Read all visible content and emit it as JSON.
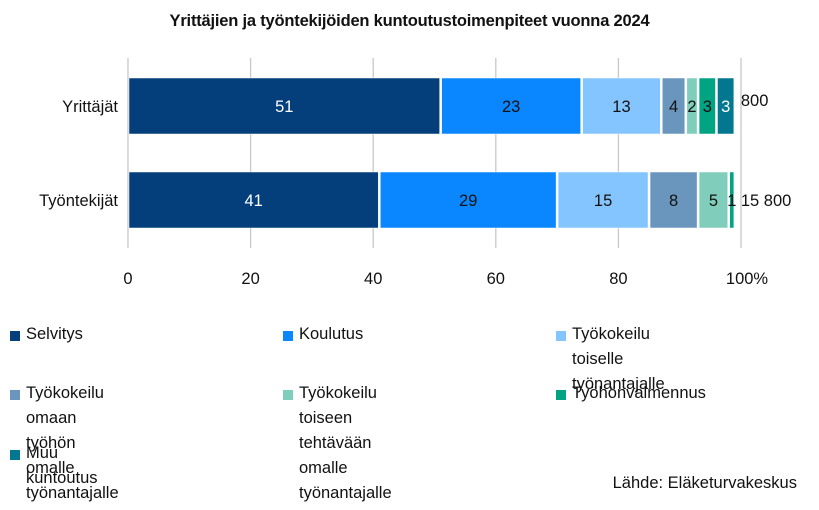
{
  "chart_data": {
    "type": "bar",
    "orientation": "horizontal",
    "stacked": true,
    "title": "Yrittäjien ja työntekijöiden kuntoutustoimenpiteet vuonna 2024",
    "xlabel": "",
    "ylabel": "",
    "xlim": [
      0,
      100
    ],
    "x_ticks": [
      "0",
      "20",
      "40",
      "60",
      "80",
      "100"
    ],
    "x_unit_label": "%",
    "grid": "vertical",
    "legend_position": "bottom",
    "categories": [
      "Yrittäjät",
      "Työntekijät"
    ],
    "totals": [
      "800",
      "15 800"
    ],
    "series": [
      {
        "name": "Selvitys",
        "color": "#043E7B",
        "label_color": "#ffffff",
        "values": [
          51,
          41
        ]
      },
      {
        "name": "Koulutus",
        "color": "#0A87FF",
        "label_color": "#111111",
        "values": [
          23,
          29
        ]
      },
      {
        "name": "Työkokeilu\ntoiselle työnantajalle",
        "color": "#85C5FF",
        "label_color": "#111111",
        "values": [
          13,
          15
        ]
      },
      {
        "name": "Työkokeilu omaan\ntyöhön omalle työnantajalle",
        "color": "#6A96BE",
        "label_color": "#111111",
        "values": [
          4,
          8
        ]
      },
      {
        "name": "Työkokeilu toiseen tehtävään\nomalle työnantajalle",
        "color": "#80CDBB",
        "label_color": "#111111",
        "values": [
          2,
          5
        ]
      },
      {
        "name": "Työhönvalmennus",
        "color": "#00A382",
        "label_color": "#111111",
        "values": [
          3,
          1
        ]
      },
      {
        "name": "Muu kuntoutus",
        "color": "#02778F",
        "label_color": "#ffffff",
        "values": [
          3,
          0
        ]
      }
    ],
    "source": "Lähde: Eläketurvakeskus"
  }
}
